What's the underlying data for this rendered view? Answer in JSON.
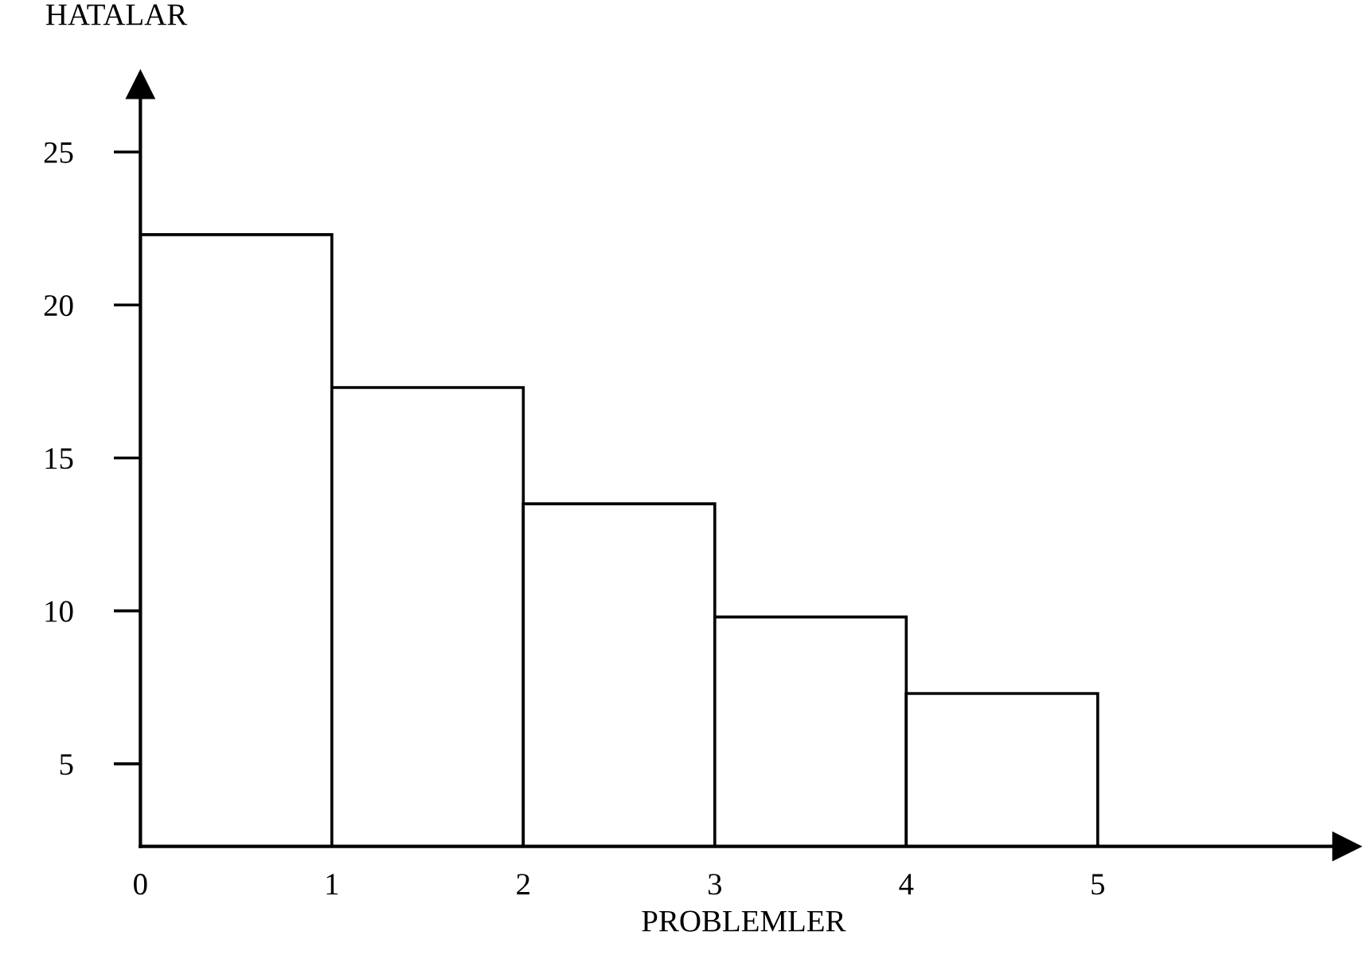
{
  "chart_data": {
    "type": "histogram",
    "xlabel": "PROBLEMLER",
    "ylabel": "HATALAR",
    "bins": [
      0,
      1,
      2,
      3,
      4,
      5
    ],
    "values": [
      22.3,
      17.3,
      13.5,
      9.8,
      7.3
    ],
    "color": "#ffffff",
    "xlim": [
      0,
      6.3
    ],
    "ylim": [
      2.3,
      27.2
    ],
    "xticks": [
      0,
      1,
      2,
      3,
      4,
      5
    ],
    "yticks": [
      5,
      10,
      15,
      20,
      25
    ],
    "grid": false
  }
}
